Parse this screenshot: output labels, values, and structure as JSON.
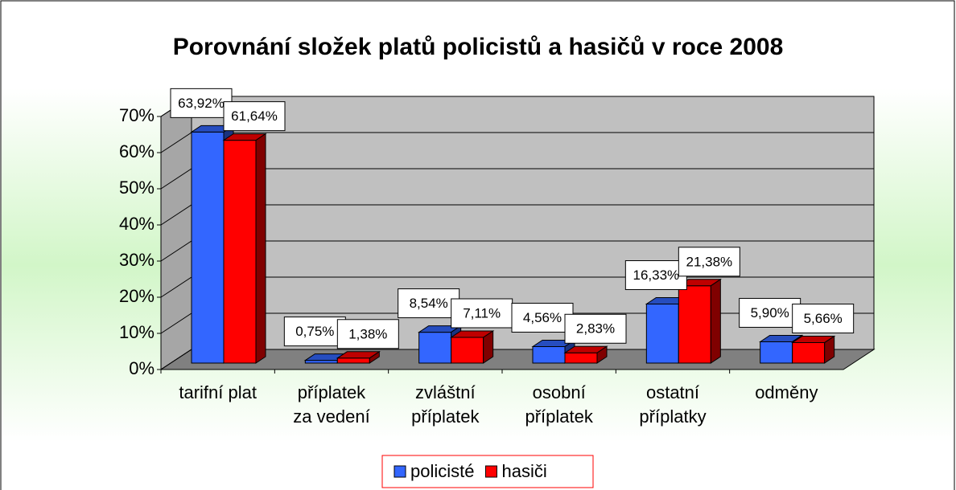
{
  "chart_data": {
    "type": "bar3d",
    "title": "Porovnání složek platů policistů a hasičů v roce 2008",
    "categories": [
      [
        "tarifní plat"
      ],
      [
        "příplatek",
        "za vedení"
      ],
      [
        "zvláštní",
        "příplatek"
      ],
      [
        "osobní",
        "příplatek"
      ],
      [
        "ostatní",
        "příplatky"
      ],
      [
        "odměny"
      ]
    ],
    "series": [
      {
        "name": "policisté",
        "color": "#3366ff",
        "values": [
          63.92,
          0.75,
          8.54,
          4.56,
          16.33,
          5.9
        ],
        "value_labels": [
          "63,92%",
          "0,75%",
          "8,54%",
          "4,56%",
          "16,33%",
          "5,90%"
        ]
      },
      {
        "name": "hasiči",
        "color": "#ff0000",
        "values": [
          61.64,
          1.38,
          7.11,
          2.83,
          21.38,
          5.66
        ],
        "value_labels": [
          "61,64%",
          "1,38%",
          "7,11%",
          "2,83%",
          "21,38%",
          "5,66%"
        ]
      }
    ],
    "ylim": [
      0,
      70
    ],
    "yticks": [
      {
        "value": 0,
        "label": "0%"
      },
      {
        "value": 10,
        "label": "10%"
      },
      {
        "value": 20,
        "label": "20%"
      },
      {
        "value": 30,
        "label": "30%"
      },
      {
        "value": 40,
        "label": "40%"
      },
      {
        "value": 50,
        "label": "50%"
      },
      {
        "value": 60,
        "label": "60%"
      },
      {
        "value": 70,
        "label": "70%"
      }
    ],
    "grid": true,
    "legend": "bottom"
  }
}
